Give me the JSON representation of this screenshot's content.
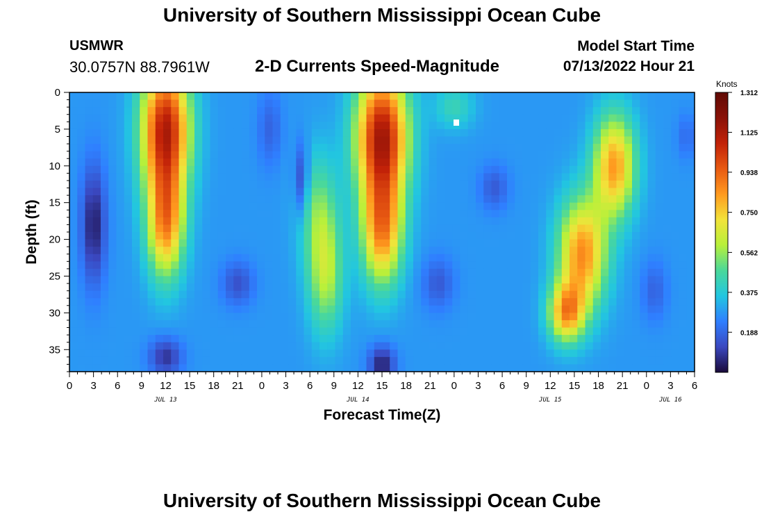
{
  "header": {
    "title": "University of Southern Mississippi Ocean Cube",
    "station": "USMWR",
    "coords": "30.0757N  88.7961W",
    "plot_title": "2-D Currents Speed-Magnitude",
    "model_start_label": "Model Start Time",
    "model_start_value": "07/13/2022 Hour 21"
  },
  "footer": {
    "title": "University of Southern Mississippi Ocean Cube"
  },
  "chart_data": {
    "type": "heatmap",
    "title": "2-D Currents Speed-Magnitude",
    "xlabel": "Forecast Time(Z)",
    "ylabel": "Depth (ft)",
    "x_tick_labels": [
      "0",
      "3",
      "6",
      "9",
      "12",
      "15",
      "18",
      "21",
      "0",
      "3",
      "6",
      "9",
      "12",
      "15",
      "18",
      "21",
      "0",
      "3",
      "6",
      "9",
      "12",
      "15",
      "18",
      "21",
      "0",
      "3",
      "6"
    ],
    "x_range_hours": [
      0,
      78
    ],
    "date_labels": [
      {
        "label": "JUL 13",
        "hour": 12
      },
      {
        "label": "JUL 14",
        "hour": 36
      },
      {
        "label": "JUL 15",
        "hour": 60
      },
      {
        "label": "JUL 16",
        "hour": 75
      }
    ],
    "y_ticks": [
      0,
      5,
      10,
      15,
      20,
      25,
      30,
      35
    ],
    "y_range": [
      0,
      38
    ],
    "y_inverted": true,
    "colorbar": {
      "unit": "Knots",
      "min": 0.0,
      "max": 1.312,
      "tick_labels": [
        "1.312",
        "1.125",
        "0.938",
        "0.750",
        "0.562",
        "0.375",
        "0.188"
      ],
      "tick_values": [
        1.312,
        1.125,
        0.938,
        0.75,
        0.562,
        0.375,
        0.188
      ]
    },
    "colormap": [
      "#1a0a3a",
      "#3a48c0",
      "#2f7fff",
      "#22c6e0",
      "#4ad89a",
      "#b8f03a",
      "#f2e33a",
      "#ff9a1f",
      "#e85a12",
      "#c22208",
      "#8a1208",
      "#600a04"
    ],
    "features": [
      {
        "name": "max-core-1",
        "hour": 12,
        "depth": 6,
        "speed": 1.15
      },
      {
        "name": "max-core-2",
        "hour": 39,
        "depth": 8,
        "speed": 1.31
      },
      {
        "name": "max-core-3",
        "hour": 64,
        "depth": 20,
        "speed": 1.0
      },
      {
        "name": "mid-core-1",
        "hour": 32,
        "depth": 25,
        "speed": 0.62
      },
      {
        "name": "min-core-1",
        "hour": 3,
        "depth": 18,
        "speed": 0.05
      },
      {
        "name": "min-core-2",
        "hour": 39,
        "depth": 38,
        "speed": 0.02
      }
    ]
  }
}
